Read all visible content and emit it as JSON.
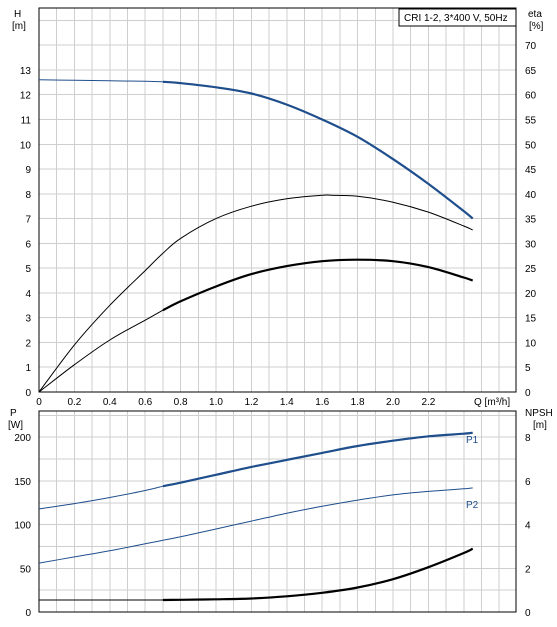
{
  "chart_data": [
    {
      "type": "line",
      "title": "CRI 1-2, 3*400 V, 50Hz",
      "xlabel": "Q [m³/h]",
      "ylabel_left": {
        "name": "H",
        "unit": "[m]"
      },
      "ylabel_right": {
        "name": "eta",
        "unit": "[%]"
      },
      "xlim": [
        0,
        2.7
      ],
      "ylim_left": [
        0,
        15.5
      ],
      "ylim_right": [
        0,
        77.5
      ],
      "x_ticks": [
        "0",
        "0.2",
        "0.4",
        "0.6",
        "0.8",
        "1.0",
        "1.2",
        "1.4",
        "1.6",
        "1.8",
        "2.0",
        "2.2"
      ],
      "y_ticks_left": [
        "0",
        "1",
        "2",
        "3",
        "4",
        "5",
        "6",
        "7",
        "8",
        "9",
        "10",
        "11",
        "12",
        "13"
      ],
      "y_ticks_right": [
        "0",
        "5",
        "10",
        "15",
        "20",
        "25",
        "30",
        "35",
        "40",
        "45",
        "50",
        "55",
        "60",
        "65",
        "70"
      ],
      "grid": true,
      "series": [
        {
          "axis": "left",
          "color": "#1f4e8c",
          "x": [
            0,
            0.2,
            0.4,
            0.6,
            0.7,
            0.8,
            1.0,
            1.2,
            1.4,
            1.6,
            1.8,
            2.0,
            2.2,
            2.4,
            2.45
          ],
          "y": [
            12.6,
            12.58,
            12.56,
            12.54,
            12.52,
            12.47,
            12.3,
            12.05,
            11.6,
            11.0,
            10.3,
            9.4,
            8.4,
            7.3,
            7.0
          ],
          "thin_until": 0.7
        },
        {
          "axis": "right",
          "color": "#000000",
          "x": [
            0,
            0.2,
            0.4,
            0.6,
            0.7,
            0.8,
            1.0,
            1.2,
            1.4,
            1.6,
            1.65,
            1.8,
            2.0,
            2.2,
            2.4,
            2.45
          ],
          "y": [
            0,
            9.5,
            17.5,
            24.5,
            28,
            31,
            35,
            37.5,
            39,
            39.7,
            39.7,
            39.5,
            38.3,
            36.3,
            33.5,
            32.7
          ],
          "thin_until": 2.45
        },
        {
          "axis": "right",
          "color": "#000000",
          "x": [
            0,
            0.2,
            0.4,
            0.6,
            0.7,
            0.8,
            1.0,
            1.2,
            1.4,
            1.6,
            1.8,
            2.0,
            2.2,
            2.4,
            2.45
          ],
          "y": [
            0,
            5.5,
            10.5,
            14.5,
            16.5,
            18.3,
            21.3,
            23.8,
            25.4,
            26.4,
            26.7,
            26.4,
            25.2,
            23.1,
            22.5
          ],
          "thin_until": 0.7
        }
      ]
    },
    {
      "type": "line",
      "xlabel": "",
      "ylabel_left": {
        "name": "P",
        "unit": "[W]"
      },
      "ylabel_right": {
        "name": "NPSH",
        "unit": "[m]"
      },
      "xlim": [
        0,
        2.7
      ],
      "ylim_left": [
        0,
        230
      ],
      "ylim_right": [
        0,
        9.2
      ],
      "y_ticks_left": [
        "0",
        "50",
        "100",
        "150",
        "200"
      ],
      "y_ticks_right": [
        "0",
        "2",
        "4",
        "6",
        "8"
      ],
      "grid": true,
      "series": [
        {
          "name": "P1",
          "axis": "left",
          "color": "#1f4e8c",
          "x": [
            0,
            0.2,
            0.4,
            0.6,
            0.7,
            0.8,
            1.0,
            1.2,
            1.4,
            1.6,
            1.8,
            2.0,
            2.2,
            2.4,
            2.45
          ],
          "y": [
            118,
            124,
            131,
            139,
            144,
            148,
            157,
            166,
            174,
            182,
            190,
            196,
            201,
            204,
            205
          ],
          "thin_until": 0.7
        },
        {
          "name": "P2",
          "axis": "left",
          "color": "#1f4e8c",
          "x": [
            0,
            0.2,
            0.4,
            0.6,
            0.7,
            0.8,
            1.0,
            1.2,
            1.4,
            1.6,
            1.8,
            2.0,
            2.2,
            2.4,
            2.45
          ],
          "y": [
            56,
            63,
            70,
            78,
            82,
            86,
            95,
            104,
            113,
            121,
            128,
            134,
            138,
            141,
            142
          ],
          "thin_until": 2.45
        },
        {
          "axis": "right",
          "color": "#000000",
          "x": [
            0,
            0.2,
            0.4,
            0.6,
            0.7,
            0.8,
            1.0,
            1.2,
            1.4,
            1.6,
            1.8,
            2.0,
            2.2,
            2.4,
            2.45
          ],
          "y": [
            0.55,
            0.55,
            0.55,
            0.55,
            0.55,
            0.56,
            0.58,
            0.62,
            0.72,
            0.88,
            1.12,
            1.5,
            2.05,
            2.7,
            2.9
          ],
          "thin_until": 0.7
        }
      ]
    }
  ]
}
